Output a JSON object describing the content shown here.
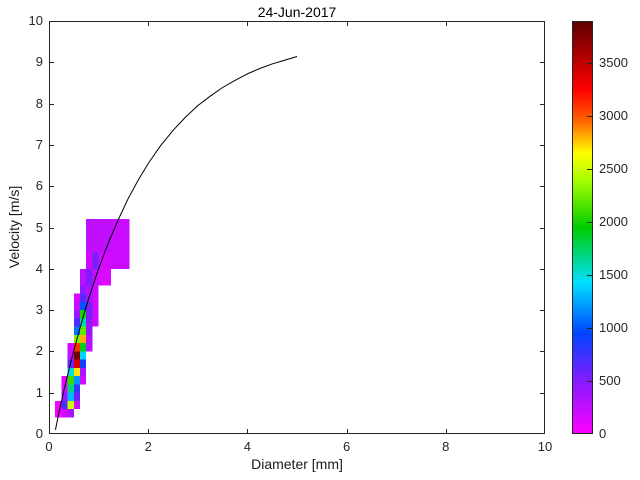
{
  "chart_data": {
    "type": "heatmap",
    "title": "24-Jun-2017",
    "xlabel": "Diameter [mm]",
    "ylabel": "Velocity [m/s]",
    "xlim": [
      0,
      10
    ],
    "ylim": [
      0,
      10
    ],
    "grid": false,
    "x_ticks": [
      0,
      2,
      4,
      6,
      8,
      10
    ],
    "y_ticks": [
      0,
      1,
      2,
      3,
      4,
      5,
      6,
      7,
      8,
      9,
      10
    ],
    "colorbar": {
      "min": 0,
      "max": 3900,
      "ticks": [
        0,
        500,
        1000,
        1500,
        2000,
        2500,
        3000,
        3500
      ],
      "position": "right",
      "stops": [
        [
          0,
          "#ff00ff"
        ],
        [
          480,
          "#8a1aff"
        ],
        [
          950,
          "#0044ff"
        ],
        [
          1430,
          "#00e0ff"
        ],
        [
          1950,
          "#00cc00"
        ],
        [
          2400,
          "#a8ff00"
        ],
        [
          2650,
          "#ffff00"
        ],
        [
          2950,
          "#ff6600"
        ],
        [
          3250,
          "#ff0000"
        ],
        [
          3900,
          "#5e0000"
        ]
      ]
    },
    "cells_format": [
      "diameter_lo_mm",
      "diameter_hi_mm",
      "velocity_lo_ms",
      "velocity_hi_ms",
      "count"
    ],
    "cells": [
      [
        0.125,
        0.25,
        0.4,
        0.6,
        80
      ],
      [
        0.25,
        0.375,
        0.4,
        0.6,
        180
      ],
      [
        0.375,
        0.5,
        0.4,
        0.6,
        350
      ],
      [
        0.125,
        0.25,
        0.6,
        0.8,
        60
      ],
      [
        0.25,
        0.375,
        0.6,
        0.8,
        700
      ],
      [
        0.375,
        0.5,
        0.6,
        0.8,
        2500
      ],
      [
        0.5,
        0.625,
        0.6,
        0.8,
        250
      ],
      [
        0.25,
        0.375,
        0.8,
        1.0,
        400
      ],
      [
        0.375,
        0.5,
        0.8,
        1.0,
        1300
      ],
      [
        0.5,
        0.625,
        0.8,
        1.0,
        600
      ],
      [
        0.25,
        0.375,
        1.0,
        1.2,
        150
      ],
      [
        0.375,
        0.5,
        1.0,
        1.2,
        1700
      ],
      [
        0.5,
        0.625,
        1.0,
        1.2,
        800
      ],
      [
        0.25,
        0.375,
        1.2,
        1.4,
        120
      ],
      [
        0.375,
        0.5,
        1.2,
        1.4,
        2100
      ],
      [
        0.5,
        0.625,
        1.2,
        1.4,
        1200
      ],
      [
        0.625,
        0.75,
        1.2,
        1.4,
        200
      ],
      [
        0.375,
        0.5,
        1.4,
        1.6,
        1500
      ],
      [
        0.5,
        0.625,
        1.4,
        1.6,
        2700
      ],
      [
        0.625,
        0.75,
        1.4,
        1.6,
        350
      ],
      [
        0.375,
        0.5,
        1.6,
        1.8,
        600
      ],
      [
        0.5,
        0.625,
        1.6,
        1.8,
        3400
      ],
      [
        0.625,
        0.75,
        1.6,
        1.8,
        900
      ],
      [
        0.375,
        0.5,
        1.8,
        2.0,
        250
      ],
      [
        0.5,
        0.625,
        1.8,
        2.0,
        3800
      ],
      [
        0.625,
        0.75,
        1.8,
        2.0,
        1400
      ],
      [
        0.375,
        0.5,
        2.0,
        2.2,
        180
      ],
      [
        0.5,
        0.625,
        2.0,
        2.2,
        3100
      ],
      [
        0.625,
        0.75,
        2.0,
        2.2,
        1900
      ],
      [
        0.75,
        0.875,
        2.0,
        2.4,
        300
      ],
      [
        0.5,
        0.625,
        2.2,
        2.4,
        2300
      ],
      [
        0.625,
        0.75,
        2.2,
        2.4,
        2800
      ],
      [
        0.5,
        0.625,
        2.4,
        2.6,
        1100
      ],
      [
        0.625,
        0.75,
        2.4,
        2.6,
        2200
      ],
      [
        0.75,
        0.875,
        2.4,
        2.8,
        450
      ],
      [
        0.5,
        0.625,
        2.6,
        2.8,
        700
      ],
      [
        0.625,
        0.75,
        2.6,
        2.8,
        1600
      ],
      [
        0.5,
        0.625,
        2.8,
        3.0,
        400
      ],
      [
        0.625,
        0.75,
        2.8,
        3.0,
        2000
      ],
      [
        0.75,
        0.875,
        2.8,
        3.2,
        550
      ],
      [
        0.875,
        1.0,
        2.6,
        3.0,
        200
      ],
      [
        0.5,
        0.625,
        3.0,
        3.2,
        250
      ],
      [
        0.625,
        0.75,
        3.0,
        3.2,
        1000
      ],
      [
        0.5,
        0.625,
        3.2,
        3.4,
        150
      ],
      [
        0.625,
        0.75,
        3.2,
        3.4,
        650
      ],
      [
        0.75,
        0.875,
        3.2,
        3.4,
        350
      ],
      [
        0.875,
        1.0,
        3.0,
        3.4,
        180
      ],
      [
        0.625,
        0.75,
        3.4,
        3.6,
        450
      ],
      [
        0.75,
        0.875,
        3.4,
        3.6,
        300
      ],
      [
        0.875,
        1.0,
        3.4,
        3.6,
        220
      ],
      [
        0.625,
        0.75,
        3.6,
        4.0,
        280
      ],
      [
        0.75,
        0.875,
        3.6,
        4.0,
        500
      ],
      [
        0.875,
        1.0,
        3.6,
        4.0,
        240
      ],
      [
        1.0,
        1.125,
        3.6,
        4.0,
        160
      ],
      [
        1.125,
        1.25,
        3.6,
        4.0,
        140
      ],
      [
        0.75,
        0.875,
        4.0,
        4.4,
        200
      ],
      [
        0.875,
        1.0,
        4.0,
        4.4,
        550
      ],
      [
        1.0,
        1.25,
        4.0,
        4.4,
        180
      ],
      [
        0.75,
        1.25,
        4.4,
        5.2,
        260
      ],
      [
        1.25,
        1.625,
        4.0,
        5.2,
        220
      ]
    ],
    "curve": {
      "name": "terminal-velocity-curve",
      "color": "#000000",
      "points": [
        [
          0.13,
          0.1
        ],
        [
          0.2,
          0.52
        ],
        [
          0.3,
          1.05
        ],
        [
          0.4,
          1.55
        ],
        [
          0.5,
          2.02
        ],
        [
          0.6,
          2.46
        ],
        [
          0.7,
          2.88
        ],
        [
          0.8,
          3.28
        ],
        [
          0.9,
          3.65
        ],
        [
          1.0,
          4.0
        ],
        [
          1.2,
          4.64
        ],
        [
          1.4,
          5.2
        ],
        [
          1.6,
          5.71
        ],
        [
          1.8,
          6.15
        ],
        [
          2.0,
          6.55
        ],
        [
          2.25,
          6.98
        ],
        [
          2.5,
          7.35
        ],
        [
          2.75,
          7.67
        ],
        [
          3.0,
          7.95
        ],
        [
          3.25,
          8.18
        ],
        [
          3.5,
          8.39
        ],
        [
          3.75,
          8.56
        ],
        [
          4.0,
          8.72
        ],
        [
          4.25,
          8.85
        ],
        [
          4.5,
          8.96
        ],
        [
          4.75,
          9.05
        ],
        [
          5.0,
          9.14
        ]
      ]
    }
  }
}
